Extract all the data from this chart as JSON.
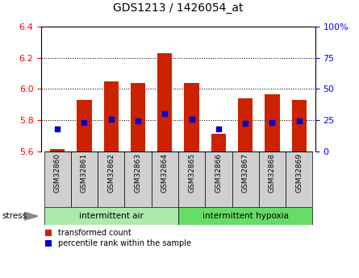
{
  "title": "GDS1213 / 1426054_at",
  "samples": [
    "GSM32860",
    "GSM32861",
    "GSM32862",
    "GSM32863",
    "GSM32864",
    "GSM32865",
    "GSM32866",
    "GSM32867",
    "GSM32868",
    "GSM32869"
  ],
  "bar_bottom": 5.6,
  "bar_tops": [
    5.615,
    5.93,
    6.05,
    6.04,
    6.23,
    6.04,
    5.715,
    5.94,
    5.965,
    5.93
  ],
  "percentile_values": [
    5.742,
    5.784,
    5.808,
    5.796,
    5.844,
    5.804,
    5.745,
    5.782,
    5.786,
    5.795
  ],
  "groups": [
    {
      "label": "intermittent air",
      "x_start": -0.5,
      "x_end": 4.5,
      "color": "#aaeaaa"
    },
    {
      "label": "intermittent hypoxia",
      "x_start": 4.5,
      "x_end": 9.5,
      "color": "#66dd66"
    }
  ],
  "ylim_left": [
    5.6,
    6.4
  ],
  "yticks_left": [
    5.6,
    5.8,
    6.0,
    6.2,
    6.4
  ],
  "ylim_right": [
    0,
    100
  ],
  "yticks_right": [
    0,
    25,
    50,
    75,
    100
  ],
  "bar_color": "#cc2200",
  "dot_color": "#0000cc",
  "stress_label": "stress",
  "legend_items": [
    "transformed count",
    "percentile rank within the sample"
  ],
  "n_samples": 10,
  "xlim": [
    -0.6,
    9.6
  ]
}
